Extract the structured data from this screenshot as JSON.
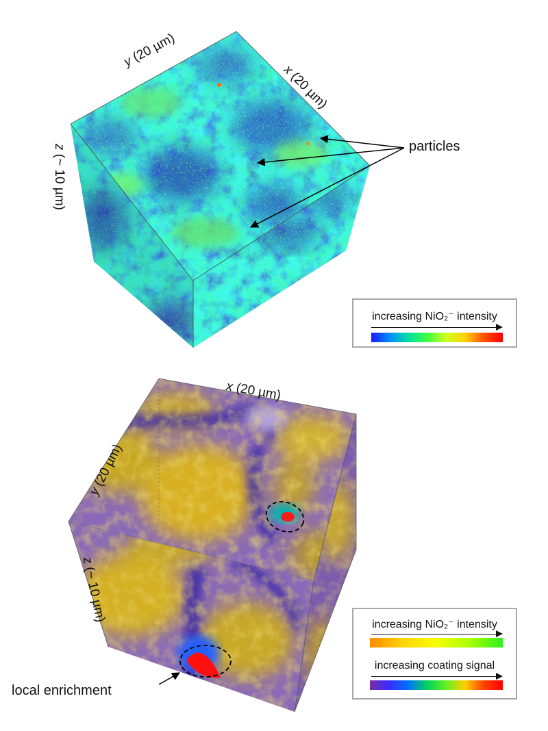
{
  "top_cube": {
    "x_axis": {
      "var": "x",
      "rest": " (20 µm)"
    },
    "y_axis": {
      "var": "y",
      "rest": " (20 µm)"
    },
    "z_axis": {
      "var": "z",
      "rest": " (~ 10 µm)"
    },
    "callout": "particles",
    "legend": {
      "label": "increasing NiO₂⁻ intensity",
      "gradient": [
        "#1a1aff",
        "#0090ff",
        "#00e0a0",
        "#40ff40",
        "#d0ff20",
        "#ffd000",
        "#ff5000",
        "#ff0000"
      ]
    },
    "colors": {
      "bg_blue": "#2f6fc0",
      "mid_teal": "#2fc9a8",
      "hi_green": "#6ff060",
      "hot": "#ff7a00"
    }
  },
  "bottom_cube": {
    "x_axis": {
      "var": "x",
      "rest": " (20 µm)"
    },
    "y_axis": {
      "var": "y",
      "rest": " (20 µm)"
    },
    "z_axis": {
      "var": "z",
      "rest": " (~ 10 µm)"
    },
    "callout": "local enrichment",
    "legend": {
      "label1": "increasing NiO₂⁻ intensity",
      "gradient1": [
        "#ff8a00",
        "#ffd400",
        "#f7ff00",
        "#a8ff00",
        "#30f020"
      ],
      "label2": "increasing coating signal",
      "gradient2": [
        "#7a2ca8",
        "#3a2cff",
        "#0070ff",
        "#00d060",
        "#60f020",
        "#ffd000",
        "#ff4000",
        "#ff0000"
      ]
    },
    "colors": {
      "matrix": "#c9a020",
      "coating": "#5a2aa0",
      "enrich": "#ff0000"
    }
  }
}
